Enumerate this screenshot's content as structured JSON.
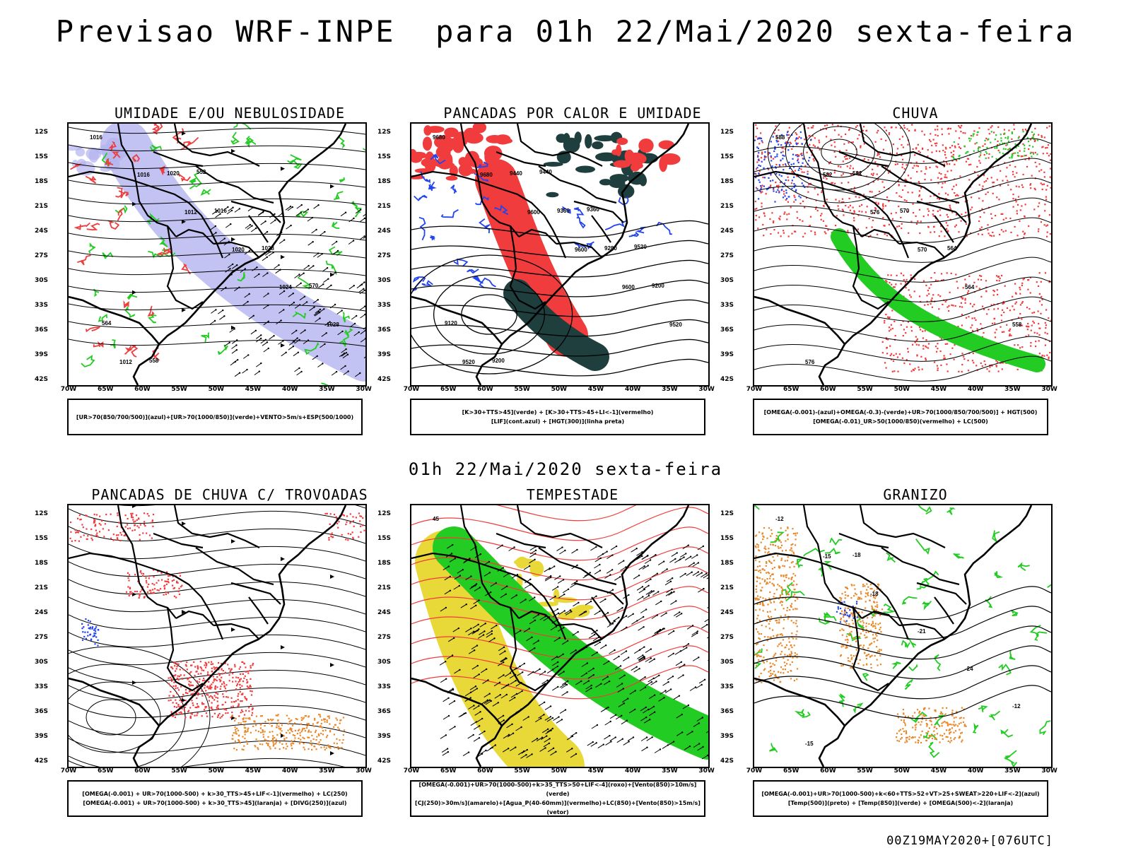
{
  "header": {
    "title": "Previsao WRF-INPE  para 01h 22/Mai/2020 sexta-feira",
    "subtitle": "01h 22/Mai/2020 sexta-feira",
    "footer": "00Z19MAY2020+[076UTC]"
  },
  "axes": {
    "latitudes": [
      "12S",
      "15S",
      "18S",
      "21S",
      "24S",
      "27S",
      "30S",
      "33S",
      "36S",
      "39S",
      "42S"
    ],
    "longitudes": [
      "70W",
      "65W",
      "60W",
      "55W",
      "50W",
      "45W",
      "40W",
      "35W",
      "30W"
    ]
  },
  "panels": [
    {
      "title": "UMIDADE E/OU NEBULOSIDADE",
      "legend": [
        "[UR>70(850/700/500)](azul)+[UR>70(1000/850)](verde)+VENTO>5m/s+ESP(500/1000)"
      ],
      "labels": [
        "1016",
        "1016",
        "1012",
        "1020",
        "1024",
        "1028",
        "1012",
        "1020",
        "1016",
        "1028",
        "570",
        "564",
        "558",
        "552"
      ]
    },
    {
      "title": "PANCADAS POR CALOR E UMIDADE",
      "legend": [
        "[K>30+TTS>45](verde) + [K>30+TTS>45+LI<-1](vermelho)",
        "[LIF](cont.azul) + [HGT(300)](linha preta)"
      ],
      "labels": [
        "9680",
        "9680",
        "9600",
        "9600",
        "9600",
        "9520",
        "9520",
        "9440",
        "9360",
        "9280",
        "9200",
        "9120",
        "9200",
        "9440",
        "9360",
        "9520"
      ]
    },
    {
      "title": "CHUVA",
      "legend": [
        "[OMEGA(-0.001)-(azul)+OMEGA(-0.3)-(verde)+UR>70(1000/850/700/500)] + HGT(500)",
        "[OMEGA(-0.01)_UR>50(1000/850)(vermelho) + LC(500)"
      ],
      "labels": [
        "588",
        "582",
        "576",
        "570",
        "564",
        "558",
        "576",
        "582",
        "570",
        "564"
      ]
    },
    {
      "title": "PANCADAS DE CHUVA C/ TROVOADAS",
      "legend": [
        "[OMEGA(-0.001) + UR>70(1000-500) + k>30_TTS>45+LIF<-1](vermelho) + LC(250)",
        "[OMEGA(-0.001) + UR>70(1000-500) + k>30_TTS>45](laranja) + [DIVG(250)](azul)"
      ],
      "labels": []
    },
    {
      "title": "TEMPESTADE",
      "legend": [
        "[OMEGA(-0.001)+UR>70(1000-500)+k>35_TTS>50+LIF<-4](roxo)+[Vento(850)>10m/s](verde)",
        "[CJ(250)>30m/s](amarelo)+[Agua_P(40-60mm)](vermelho)+LC(850)+[Vento(850)>15m/s](vetor)"
      ],
      "labels": [
        "45"
      ]
    },
    {
      "title": "GRANIZO",
      "legend": [
        "[OMEGA(-0.001)+UR>70(1000-500)+k<60+TTS>52+VT>25+SWEAT>220+LIF<-2](azul)",
        "[Temp(500)](preto) + [Temp(850)](verde) + [OMEGA(500)<-2](laranja)"
      ],
      "labels": [
        "-12",
        "-15",
        "-18",
        "-21",
        "-24",
        "-12",
        "-15",
        "-18"
      ]
    }
  ],
  "colors": {
    "red": "#f03c3c",
    "green": "#22cc22",
    "blue": "#2244ee",
    "lavender": "#b3b3f0",
    "darkteal": "#1f3f3f",
    "yellow": "#e8d838",
    "orange": "#e8882a"
  }
}
